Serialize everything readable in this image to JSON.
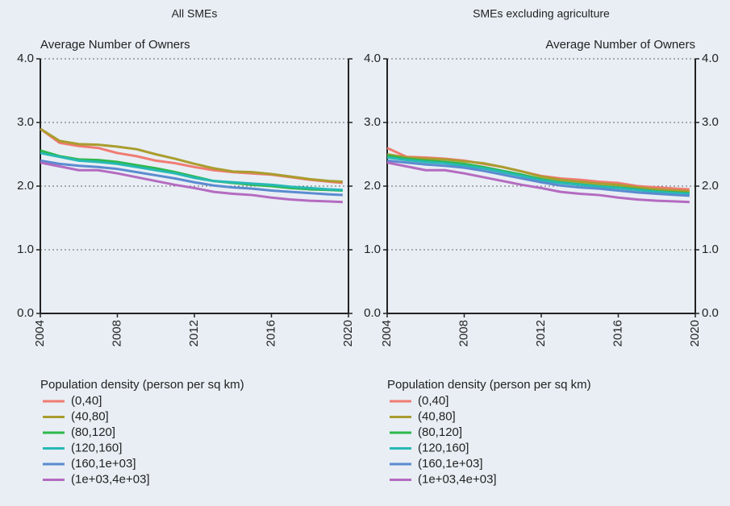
{
  "chart_data": [
    {
      "type": "line",
      "title": "All SMEs",
      "y_label": "Average Number of Owners",
      "x": [
        2004,
        2005,
        2006,
        2007,
        2008,
        2009,
        2010,
        2011,
        2012,
        2013,
        2014,
        2015,
        2016,
        2017,
        2018,
        2019,
        2019.7
      ],
      "xlim": [
        2004,
        2020
      ],
      "xticks": [
        2004,
        2008,
        2012,
        2016,
        2020
      ],
      "ylim": [
        0,
        4
      ],
      "yticks": [
        {
          "value": 0,
          "label": "0.0"
        },
        {
          "value": 1,
          "label": "1.0"
        },
        {
          "value": 2,
          "label": "2.0"
        },
        {
          "value": 3,
          "label": "3.0"
        },
        {
          "value": 4,
          "label": "4.0"
        }
      ],
      "grid": true,
      "legend_title": "Population density (person per sq km)",
      "series": [
        {
          "name": "(0,40]",
          "color": "#f07b72",
          "values": [
            2.9,
            2.68,
            2.63,
            2.6,
            2.52,
            2.47,
            2.4,
            2.36,
            2.3,
            2.25,
            2.22,
            2.2,
            2.18,
            2.14,
            2.1,
            2.07,
            2.05
          ]
        },
        {
          "name": "(40,80]",
          "color": "#aa9d2e",
          "values": [
            2.9,
            2.71,
            2.66,
            2.65,
            2.62,
            2.58,
            2.5,
            2.43,
            2.35,
            2.28,
            2.23,
            2.22,
            2.19,
            2.15,
            2.11,
            2.08,
            2.07
          ]
        },
        {
          "name": "(80,120]",
          "color": "#2eb84b",
          "values": [
            2.56,
            2.47,
            2.42,
            2.41,
            2.38,
            2.33,
            2.28,
            2.22,
            2.15,
            2.08,
            2.05,
            2.02,
            2.0,
            1.97,
            1.95,
            1.94,
            1.93
          ]
        },
        {
          "name": "(120,160]",
          "color": "#27b9b5",
          "values": [
            2.52,
            2.46,
            2.4,
            2.38,
            2.35,
            2.3,
            2.25,
            2.2,
            2.13,
            2.08,
            2.06,
            2.04,
            2.02,
            1.99,
            1.97,
            1.95,
            1.94
          ]
        },
        {
          "name": "(160,1e+03]",
          "color": "#5b8bd0",
          "values": [
            2.4,
            2.35,
            2.32,
            2.3,
            2.27,
            2.22,
            2.17,
            2.12,
            2.06,
            2.01,
            1.98,
            1.96,
            1.93,
            1.91,
            1.89,
            1.87,
            1.86
          ]
        },
        {
          "name": "(1e+03,4e+03]",
          "color": "#b46bc0",
          "values": [
            2.37,
            2.31,
            2.25,
            2.25,
            2.2,
            2.14,
            2.08,
            2.02,
            1.97,
            1.91,
            1.88,
            1.86,
            1.82,
            1.79,
            1.77,
            1.76,
            1.75
          ]
        }
      ]
    },
    {
      "type": "line",
      "title": "SMEs excluding agriculture",
      "y_label": "Average Number of Owners",
      "x": [
        2004,
        2005,
        2006,
        2007,
        2008,
        2009,
        2010,
        2011,
        2012,
        2013,
        2014,
        2015,
        2016,
        2017,
        2018,
        2019,
        2019.7
      ],
      "xlim": [
        2004,
        2020
      ],
      "xticks": [
        2004,
        2008,
        2012,
        2016,
        2020
      ],
      "ylim": [
        0,
        4
      ],
      "yticks": [
        {
          "value": 0,
          "label": "0.0"
        },
        {
          "value": 1,
          "label": "1.0"
        },
        {
          "value": 2,
          "label": "2.0"
        },
        {
          "value": 3,
          "label": "3.0"
        },
        {
          "value": 4,
          "label": "4.0"
        }
      ],
      "grid": true,
      "legend_title": "Population density (person per sq km)",
      "series": [
        {
          "name": "(0,40]",
          "color": "#f07b72",
          "values": [
            2.6,
            2.46,
            2.45,
            2.43,
            2.4,
            2.35,
            2.3,
            2.23,
            2.16,
            2.12,
            2.1,
            2.07,
            2.05,
            2.0,
            1.98,
            1.96,
            1.95
          ]
        },
        {
          "name": "(40,80]",
          "color": "#aa9d2e",
          "values": [
            2.5,
            2.45,
            2.43,
            2.42,
            2.39,
            2.36,
            2.3,
            2.23,
            2.15,
            2.1,
            2.07,
            2.04,
            2.02,
            1.98,
            1.95,
            1.93,
            1.92
          ]
        },
        {
          "name": "(80,120]",
          "color": "#2eb84b",
          "values": [
            2.48,
            2.43,
            2.4,
            2.38,
            2.35,
            2.3,
            2.24,
            2.18,
            2.11,
            2.06,
            2.03,
            2.0,
            1.98,
            1.95,
            1.92,
            1.9,
            1.89
          ]
        },
        {
          "name": "(120,160]",
          "color": "#27b9b5",
          "values": [
            2.45,
            2.41,
            2.38,
            2.36,
            2.32,
            2.28,
            2.22,
            2.16,
            2.09,
            2.05,
            2.02,
            1.99,
            1.97,
            1.94,
            1.91,
            1.89,
            1.88
          ]
        },
        {
          "name": "(160,1e+03]",
          "color": "#5b8bd0",
          "values": [
            2.4,
            2.37,
            2.34,
            2.32,
            2.29,
            2.24,
            2.18,
            2.12,
            2.06,
            2.01,
            1.98,
            1.96,
            1.93,
            1.9,
            1.88,
            1.86,
            1.85
          ]
        },
        {
          "name": "(1e+03,4e+03]",
          "color": "#b46bc0",
          "values": [
            2.37,
            2.31,
            2.25,
            2.25,
            2.2,
            2.14,
            2.08,
            2.02,
            1.97,
            1.91,
            1.88,
            1.86,
            1.82,
            1.79,
            1.77,
            1.76,
            1.75
          ]
        }
      ]
    }
  ]
}
